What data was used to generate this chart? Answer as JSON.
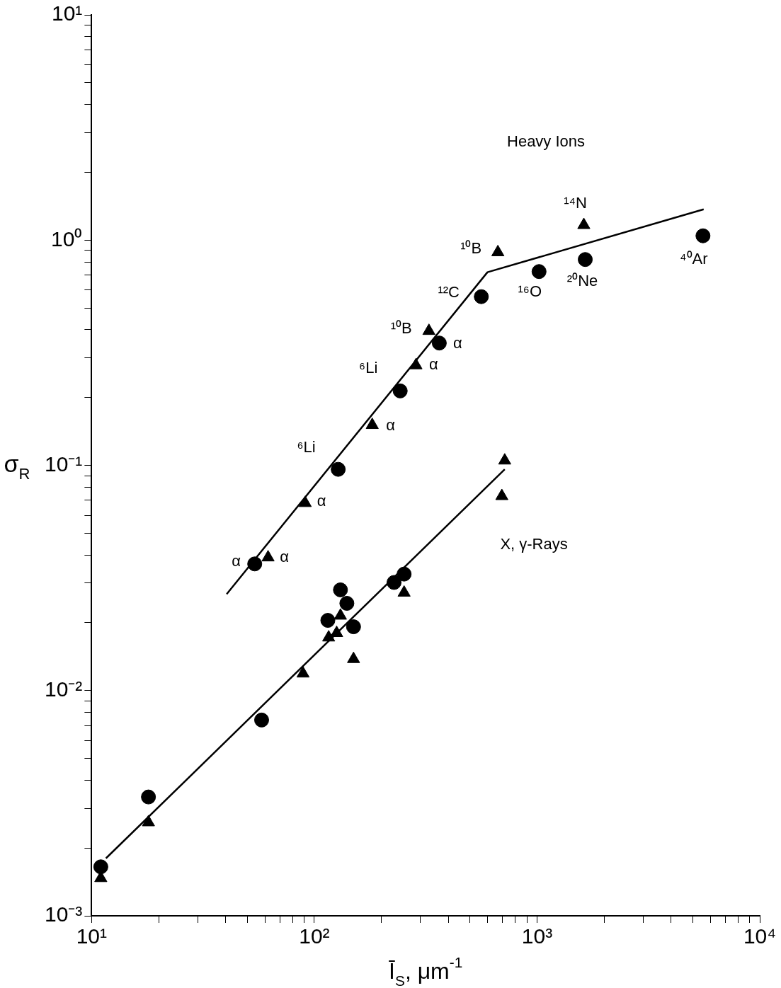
{
  "chart_data": {
    "type": "scatter",
    "xlabel": "Ī$_{S}$, μm$^{-1}$",
    "ylabel": "σ$_{R}$",
    "log": "xy",
    "grid": false,
    "legend": false,
    "xlim": [
      10,
      10000
    ],
    "ylim": [
      0.001,
      10
    ],
    "xticks": [
      {
        "value": 10,
        "label": "10¹"
      },
      {
        "value": 20,
        "label": null
      },
      {
        "value": 30,
        "label": null
      },
      {
        "value": 40,
        "label": null
      },
      {
        "value": 50,
        "label": null
      },
      {
        "value": 60,
        "label": null
      },
      {
        "value": 70,
        "label": null
      },
      {
        "value": 80,
        "label": null
      },
      {
        "value": 90,
        "label": null
      },
      {
        "value": 100,
        "label": "10²"
      },
      {
        "value": 200,
        "label": null
      },
      {
        "value": 300,
        "label": null
      },
      {
        "value": 400,
        "label": null
      },
      {
        "value": 500,
        "label": null
      },
      {
        "value": 600,
        "label": null
      },
      {
        "value": 700,
        "label": null
      },
      {
        "value": 800,
        "label": null
      },
      {
        "value": 900,
        "label": null
      },
      {
        "value": 1000,
        "label": "10³"
      },
      {
        "value": 2000,
        "label": null
      },
      {
        "value": 3000,
        "label": null
      },
      {
        "value": 4000,
        "label": null
      },
      {
        "value": 5000,
        "label": null
      },
      {
        "value": 6000,
        "label": null
      },
      {
        "value": 7000,
        "label": null
      },
      {
        "value": 8000,
        "label": null
      },
      {
        "value": 9000,
        "label": null
      },
      {
        "value": 10000,
        "label": "10⁴"
      }
    ],
    "yticks": [
      {
        "value": 0.001,
        "label": "10⁻³"
      },
      {
        "value": 0.002,
        "label": null
      },
      {
        "value": 0.003,
        "label": null
      },
      {
        "value": 0.004,
        "label": null
      },
      {
        "value": 0.005,
        "label": null
      },
      {
        "value": 0.006,
        "label": null
      },
      {
        "value": 0.007,
        "label": null
      },
      {
        "value": 0.008,
        "label": null
      },
      {
        "value": 0.009,
        "label": null
      },
      {
        "value": 0.01,
        "label": "10⁻²"
      },
      {
        "value": 0.02,
        "label": null
      },
      {
        "value": 0.03,
        "label": null
      },
      {
        "value": 0.04,
        "label": null
      },
      {
        "value": 0.05,
        "label": null
      },
      {
        "value": 0.06,
        "label": null
      },
      {
        "value": 0.07,
        "label": null
      },
      {
        "value": 0.08,
        "label": null
      },
      {
        "value": 0.09,
        "label": null
      },
      {
        "value": 0.1,
        "label": "10⁻¹"
      },
      {
        "value": 0.2,
        "label": null
      },
      {
        "value": 0.3,
        "label": null
      },
      {
        "value": 0.4,
        "label": null
      },
      {
        "value": 0.5,
        "label": null
      },
      {
        "value": 0.6,
        "label": null
      },
      {
        "value": 0.7,
        "label": null
      },
      {
        "value": 0.8,
        "label": null
      },
      {
        "value": 0.9,
        "label": null
      },
      {
        "value": 1,
        "label": "10⁰"
      },
      {
        "value": 2,
        "label": null
      },
      {
        "value": 3,
        "label": null
      },
      {
        "value": 4,
        "label": null
      },
      {
        "value": 5,
        "label": null
      },
      {
        "value": 6,
        "label": null
      },
      {
        "value": 7,
        "label": null
      },
      {
        "value": 8,
        "label": null
      },
      {
        "value": 9,
        "label": null
      },
      {
        "value": 10,
        "label": "10¹"
      }
    ],
    "series": [
      {
        "marker": "circle",
        "color": "#000000",
        "x": [
          54,
          128,
          243,
          364,
          562,
          1021,
          1646,
          5560,
          11,
          18,
          58,
          131,
          140,
          115,
          150,
          228,
          253
        ],
        "values": [
          0.0365,
          0.096,
          0.214,
          0.349,
          0.561,
          0.725,
          0.82,
          1.045,
          0.00165,
          0.00337,
          0.0074,
          0.028,
          0.0244,
          0.0205,
          0.0192,
          0.0302,
          0.0329
        ]
      },
      {
        "marker": "triangle",
        "color": "#000000",
        "x": [
          62,
          91,
          182,
          286,
          327,
          667,
          1622,
          11,
          18,
          131,
          126,
          116,
          89,
          150,
          253,
          716,
          695
        ],
        "values": [
          0.039,
          0.068,
          0.151,
          0.278,
          0.395,
          0.883,
          1.166,
          0.00147,
          0.0026,
          0.0215,
          0.018,
          0.0172,
          0.0119,
          0.0138,
          0.0272,
          0.105,
          0.073
        ]
      },
      {
        "type": "line",
        "marker": "none",
        "color": "#000000",
        "x": [
          40.4,
          599,
          5600
        ],
        "values": [
          0.0268,
          0.72,
          1.37
        ]
      },
      {
        "type": "line",
        "marker": "none",
        "color": "#000000",
        "x": [
          11.6,
          716
        ],
        "values": [
          0.0018,
          0.096
        ]
      }
    ],
    "annotations": [
      "Heavy Ions",
      "X, γ-Rays",
      {
        "text": "α",
        "x": 54,
        "y": 0.0365
      },
      {
        "text": "α",
        "x": 62,
        "y": 0.039
      },
      {
        "text": "α",
        "x": 91,
        "y": 0.068
      },
      {
        "text": "⁶Li",
        "x": 128,
        "y": 0.096
      },
      {
        "text": "α",
        "x": 182,
        "y": 0.151
      },
      {
        "text": "⁶Li",
        "x": 243,
        "y": 0.214
      },
      {
        "text": "α",
        "x": 286,
        "y": 0.278
      },
      {
        "text": "¹⁰B",
        "x": 327,
        "y": 0.395
      },
      {
        "text": "α",
        "x": 364,
        "y": 0.349
      },
      {
        "text": "¹²C",
        "x": 562,
        "y": 0.561
      },
      {
        "text": "¹⁰B",
        "x": 667,
        "y": 0.883
      },
      {
        "text": "¹⁶O",
        "x": 1021,
        "y": 0.725
      },
      {
        "text": "²⁰Ne",
        "x": 1646,
        "y": 0.82
      },
      {
        "text": "¹⁴N",
        "x": 1622,
        "y": 1.166
      },
      {
        "text": "⁴⁰Ar",
        "x": 5560,
        "y": 1.045
      }
    ]
  }
}
